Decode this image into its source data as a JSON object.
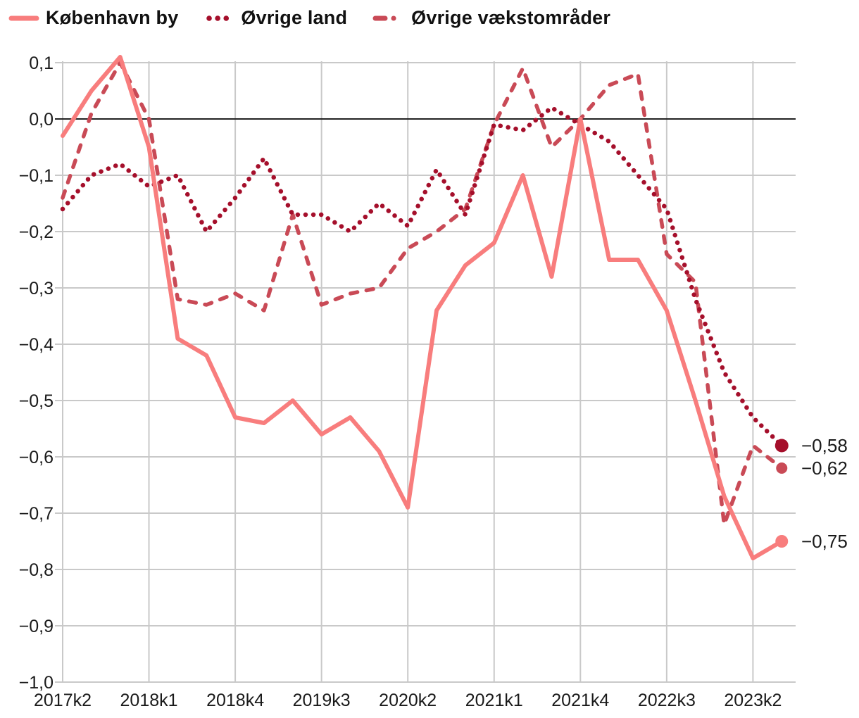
{
  "legend": [
    {
      "label": "København by",
      "color": "#F87D7D",
      "style": "solid"
    },
    {
      "label": "Øvrige land",
      "color": "#A50F2B",
      "style": "dotted"
    },
    {
      "label": "Øvrige vækstområder",
      "color": "#C94A56",
      "style": "dashed"
    }
  ],
  "colors": {
    "grid": "#C9C9C9",
    "zero_line": "#222222",
    "tick_text": "#1A1A1A",
    "background": "#FFFFFF"
  },
  "chart_data": {
    "type": "line",
    "x": [
      "2017k2",
      "2017k3",
      "2017k4",
      "2018k1",
      "2018k2",
      "2018k3",
      "2018k4",
      "2019k1",
      "2019k2",
      "2019k3",
      "2019k4",
      "2020k1",
      "2020k2",
      "2020k3",
      "2020k4",
      "2021k1",
      "2021k2",
      "2021k3",
      "2021k4",
      "2022k1",
      "2022k2",
      "2022k3",
      "2022k4",
      "2023k1",
      "2023k2",
      "2023k3"
    ],
    "series": [
      {
        "name": "Øvrige vækstområder",
        "style": "dashed",
        "color": "#C94A56",
        "values": [
          -0.14,
          0.01,
          0.1,
          0.0,
          -0.32,
          -0.33,
          -0.31,
          -0.34,
          -0.17,
          -0.33,
          -0.31,
          -0.3,
          -0.23,
          -0.2,
          -0.16,
          -0.01,
          0.09,
          -0.05,
          0.0,
          0.06,
          0.08,
          -0.24,
          -0.29,
          -0.72,
          -0.58,
          -0.62
        ],
        "end_label": "−0,62"
      },
      {
        "name": "Øvrige land",
        "style": "dotted",
        "color": "#A50F2B",
        "values": [
          -0.16,
          -0.1,
          -0.08,
          -0.12,
          -0.1,
          -0.2,
          -0.14,
          -0.07,
          -0.17,
          -0.17,
          -0.2,
          -0.15,
          -0.19,
          -0.09,
          -0.17,
          -0.01,
          -0.02,
          0.02,
          -0.01,
          -0.04,
          -0.1,
          -0.16,
          -0.32,
          -0.45,
          -0.53,
          -0.58
        ],
        "end_label": "−0,58"
      },
      {
        "name": "København by",
        "style": "solid",
        "color": "#F87D7D",
        "values": [
          -0.03,
          0.05,
          0.11,
          -0.05,
          -0.39,
          -0.42,
          -0.53,
          -0.54,
          -0.5,
          -0.56,
          -0.53,
          -0.59,
          -0.69,
          -0.34,
          -0.26,
          -0.22,
          -0.1,
          -0.28,
          0.0,
          -0.25,
          -0.25,
          -0.34,
          -0.5,
          -0.67,
          -0.78,
          -0.75
        ],
        "end_label": "−0,75"
      }
    ],
    "ylim": [
      -1.0,
      0.1
    ],
    "grid": true,
    "legend_position": "top-left",
    "zero_line": true,
    "y_ticks": [
      {
        "value": 0.1,
        "label": "0,1"
      },
      {
        "value": 0.0,
        "label": "0,0"
      },
      {
        "value": -0.1,
        "label": "−0,1"
      },
      {
        "value": -0.2,
        "label": "−0,2"
      },
      {
        "value": -0.3,
        "label": "−0,3"
      },
      {
        "value": -0.4,
        "label": "−0,4"
      },
      {
        "value": -0.5,
        "label": "−0,5"
      },
      {
        "value": -0.6,
        "label": "−0,6"
      },
      {
        "value": -0.7,
        "label": "−0,7"
      },
      {
        "value": -0.8,
        "label": "−0,8"
      },
      {
        "value": -0.9,
        "label": "−0,9"
      },
      {
        "value": -1.0,
        "label": "−1,0"
      }
    ],
    "x_ticks": [
      {
        "index": 0,
        "label": "2017k2"
      },
      {
        "index": 3,
        "label": "2018k1"
      },
      {
        "index": 6,
        "label": "2018k4"
      },
      {
        "index": 9,
        "label": "2019k3"
      },
      {
        "index": 12,
        "label": "2020k2"
      },
      {
        "index": 15,
        "label": "2021k1"
      },
      {
        "index": 18,
        "label": "2021k4"
      },
      {
        "index": 21,
        "label": "2022k3"
      },
      {
        "index": 24,
        "label": "2023k2"
      }
    ]
  }
}
